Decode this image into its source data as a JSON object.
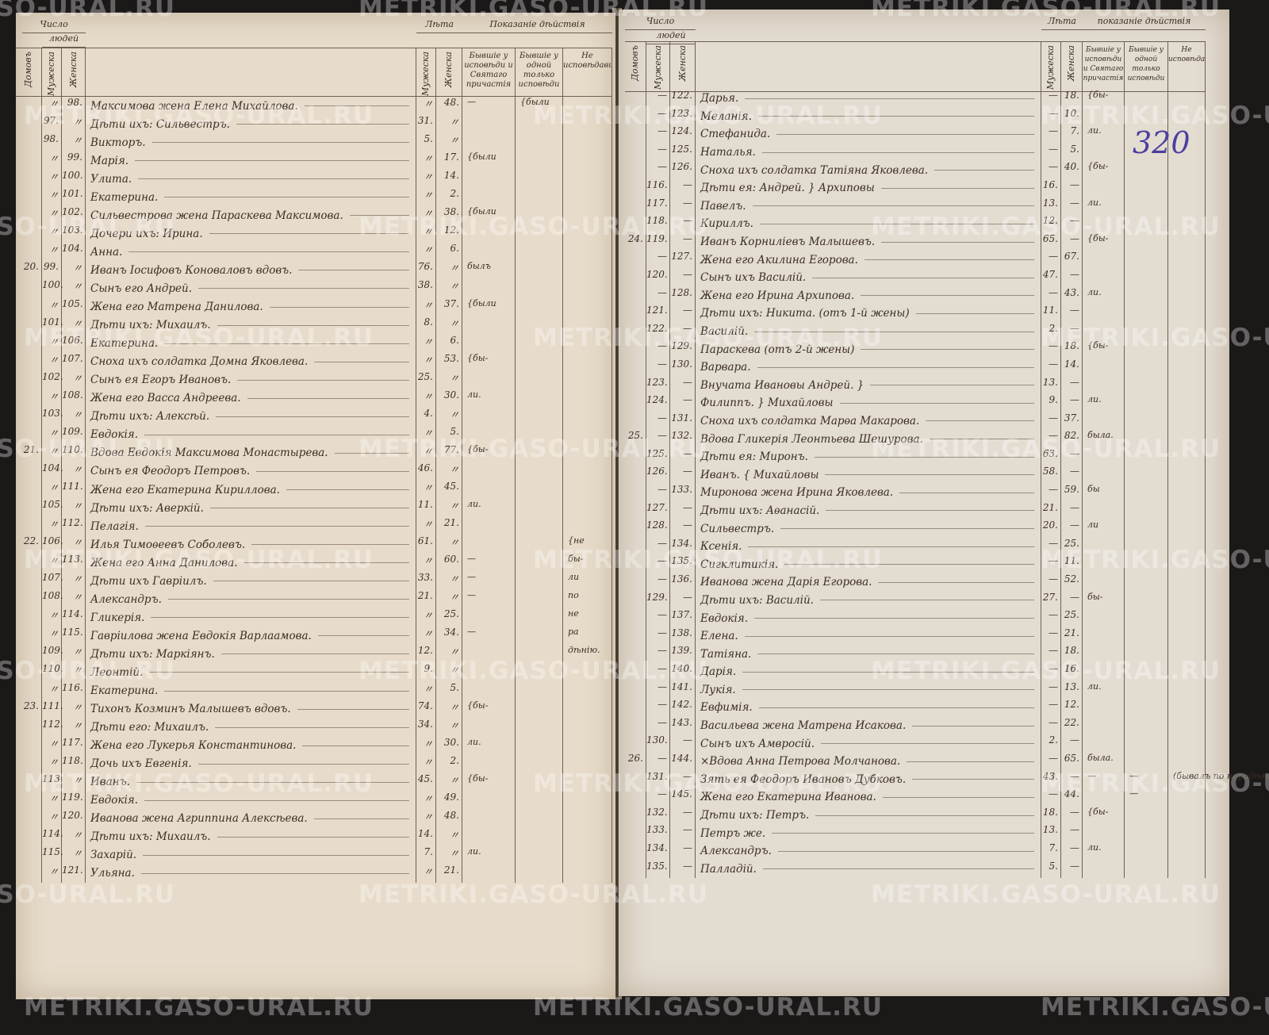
{
  "watermark": "METRIKI.GASO-URAL.RU",
  "page_number": "320",
  "colors": {
    "paper": "#e5dccd",
    "ink": "#3b2d25",
    "page_number_ink": "#4a3fa0",
    "background": "#1b1918"
  },
  "left_page": {
    "header": {
      "count_group": "Число",
      "people_group": "людей",
      "houses": "Домовъ",
      "male": "Мужеска",
      "female": "Женска",
      "age_group": "Лѣта",
      "age_male": "Мужеска",
      "age_female": "Женска",
      "status_group": "Показаніе дѣйствія",
      "confession_communion": "Бывшіе у исповѣди и Святаго причастія",
      "confession_only": "Бывшіе у одной только исповѣди",
      "not_confessed": "Не исповѣдавшіеся"
    },
    "rows": [
      {
        "house": "",
        "male_no": "〃",
        "female_no": "98.",
        "name": "Максимова жена Елена Михайлова.",
        "age_m": "〃",
        "age_f": "48.",
        "c1": "—",
        "c2": "{были"
      },
      {
        "house": "",
        "male_no": "97.",
        "female_no": "〃",
        "name": "Дѣти ихъ: Сильвестръ.",
        "age_m": "31.",
        "age_f": "〃",
        "c1": "",
        "c2": ""
      },
      {
        "house": "",
        "male_no": "98.",
        "female_no": "〃",
        "name": "Викторъ.",
        "age_m": "5.",
        "age_f": "〃",
        "c1": "",
        "c2": ""
      },
      {
        "house": "",
        "male_no": "〃",
        "female_no": "99.",
        "name": "Марія.",
        "age_m": "〃",
        "age_f": "17.",
        "c1": "{были",
        "c2": ""
      },
      {
        "house": "",
        "male_no": "〃",
        "female_no": "100.",
        "name": "Улита.",
        "age_m": "〃",
        "age_f": "14.",
        "c1": "",
        "c2": ""
      },
      {
        "house": "",
        "male_no": "〃",
        "female_no": "101.",
        "name": "Екатерина.",
        "age_m": "〃",
        "age_f": "2.",
        "c1": "",
        "c2": ""
      },
      {
        "house": "",
        "male_no": "〃",
        "female_no": "102.",
        "name": "Сильвестрова жена Параскева Максимова.",
        "age_m": "〃",
        "age_f": "38.",
        "c1": "{были",
        "c2": ""
      },
      {
        "house": "",
        "male_no": "〃",
        "female_no": "103.",
        "name": "Дочери ихъ: Ирина.",
        "age_m": "〃",
        "age_f": "12.",
        "c1": "",
        "c2": ""
      },
      {
        "house": "",
        "male_no": "〃",
        "female_no": "104.",
        "name": "Анна.",
        "age_m": "〃",
        "age_f": "6.",
        "c1": "",
        "c2": ""
      },
      {
        "house": "20.",
        "male_no": "99.",
        "female_no": "〃",
        "name": "Иванъ Іосифовъ Коноваловъ вдовъ.",
        "age_m": "76.",
        "age_f": "〃",
        "c1": "былъ",
        "c2": ""
      },
      {
        "house": "",
        "male_no": "100.",
        "female_no": "〃",
        "name": "Сынъ его Андрей.",
        "age_m": "38.",
        "age_f": "〃",
        "c1": "",
        "c2": ""
      },
      {
        "house": "",
        "male_no": "〃",
        "female_no": "105.",
        "name": "Жена его Матрена Данилова.",
        "age_m": "〃",
        "age_f": "37.",
        "c1": "{были",
        "c2": ""
      },
      {
        "house": "",
        "male_no": "101.",
        "female_no": "〃",
        "name": "Дѣти ихъ: Михаилъ.",
        "age_m": "8.",
        "age_f": "〃",
        "c1": "",
        "c2": ""
      },
      {
        "house": "",
        "male_no": "〃",
        "female_no": "106.",
        "name": "Екатерина.",
        "age_m": "〃",
        "age_f": "6.",
        "c1": "",
        "c2": ""
      },
      {
        "house": "",
        "male_no": "〃",
        "female_no": "107.",
        "name": "Сноха ихъ солдатка Домна Яковлева.",
        "age_m": "〃",
        "age_f": "53.",
        "c1": "{бы-",
        "c2": ""
      },
      {
        "house": "",
        "male_no": "102.",
        "female_no": "〃",
        "name": "Сынъ ея Егоръ Ивановъ.",
        "age_m": "25.",
        "age_f": "〃",
        "c1": "",
        "c2": ""
      },
      {
        "house": "",
        "male_no": "〃",
        "female_no": "108.",
        "name": "Жена его Васса Андреева.",
        "age_m": "〃",
        "age_f": "30.",
        "c1": "ли.",
        "c2": ""
      },
      {
        "house": "",
        "male_no": "103.",
        "female_no": "〃",
        "name": "Дѣти ихъ: Алексѣй.",
        "age_m": "4.",
        "age_f": "〃",
        "c1": "",
        "c2": ""
      },
      {
        "house": "",
        "male_no": "〃",
        "female_no": "109.",
        "name": "Евдокія.",
        "age_m": "〃",
        "age_f": "5.",
        "c1": "",
        "c2": ""
      },
      {
        "house": "21.",
        "male_no": "〃",
        "female_no": "110.",
        "name": "Вдова Евдокія Максимова Монастырева.",
        "age_m": "〃",
        "age_f": "77.",
        "c1": "{бы-",
        "c2": ""
      },
      {
        "house": "",
        "male_no": "104.",
        "female_no": "〃",
        "name": "Сынъ ея Феодоръ Петровъ.",
        "age_m": "46.",
        "age_f": "〃",
        "c1": "",
        "c2": ""
      },
      {
        "house": "",
        "male_no": "〃",
        "female_no": "111.",
        "name": "Жена его Екатерина Кириллова.",
        "age_m": "〃",
        "age_f": "45.",
        "c1": "",
        "c2": ""
      },
      {
        "house": "",
        "male_no": "105.",
        "female_no": "〃",
        "name": "Дѣти ихъ: Аверкій.",
        "age_m": "11.",
        "age_f": "〃",
        "c1": "ли.",
        "c2": ""
      },
      {
        "house": "",
        "male_no": "〃",
        "female_no": "112.",
        "name": "Пелагія.",
        "age_m": "〃",
        "age_f": "21.",
        "c1": "",
        "c2": ""
      },
      {
        "house": "22.",
        "male_no": "106.",
        "female_no": "〃",
        "name": "Илья Тимоѳеевъ Соболевъ.",
        "age_m": "61.",
        "age_f": "〃",
        "c1": "",
        "c2": "",
        "c3": "{не"
      },
      {
        "house": "",
        "male_no": "〃",
        "female_no": "113.",
        "name": "Жена его Анна Данилова.",
        "age_m": "〃",
        "age_f": "60.",
        "c1": "—",
        "c2": "",
        "c3": "бы-"
      },
      {
        "house": "",
        "male_no": "107.",
        "female_no": "〃",
        "name": "Дѣти ихъ Гавріилъ.",
        "age_m": "33.",
        "age_f": "〃",
        "c1": "—",
        "c2": "",
        "c3": "ли"
      },
      {
        "house": "",
        "male_no": "108.",
        "female_no": "〃",
        "name": "Александръ.",
        "age_m": "21.",
        "age_f": "〃",
        "c1": "—",
        "c2": "",
        "c3": "по"
      },
      {
        "house": "",
        "male_no": "〃",
        "female_no": "114.",
        "name": "Гликерія.",
        "age_m": "〃",
        "age_f": "25.",
        "c1": "",
        "c2": "",
        "c3": "не"
      },
      {
        "house": "",
        "male_no": "〃",
        "female_no": "115.",
        "name": "Гавріилова жена Евдокія Варлаамова.",
        "age_m": "〃",
        "age_f": "34.",
        "c1": "—",
        "c2": "",
        "c3": "ра"
      },
      {
        "house": "",
        "male_no": "109.",
        "female_no": "〃",
        "name": "Дѣти ихъ: Маркіянъ.",
        "age_m": "12.",
        "age_f": "〃",
        "c1": "",
        "c2": "",
        "c3": "дѣнію."
      },
      {
        "house": "",
        "male_no": "110.",
        "female_no": "〃",
        "name": "Леонтій.",
        "age_m": "9.",
        "age_f": "〃",
        "c1": "",
        "c2": ""
      },
      {
        "house": "",
        "male_no": "〃",
        "female_no": "116.",
        "name": "Екатерина.",
        "age_m": "〃",
        "age_f": "5.",
        "c1": "",
        "c2": ""
      },
      {
        "house": "23.",
        "male_no": "111.",
        "female_no": "〃",
        "name": "Тихонъ Козминъ Малышевъ вдовъ.",
        "age_m": "74.",
        "age_f": "〃",
        "c1": "{бы-",
        "c2": ""
      },
      {
        "house": "",
        "male_no": "112.",
        "female_no": "〃",
        "name": "Дѣти его: Михаилъ.",
        "age_m": "34.",
        "age_f": "〃",
        "c1": "",
        "c2": ""
      },
      {
        "house": "",
        "male_no": "〃",
        "female_no": "117.",
        "name": "Жена его Лукерья Константинова.",
        "age_m": "〃",
        "age_f": "30.",
        "c1": "ли.",
        "c2": ""
      },
      {
        "house": "",
        "male_no": "〃",
        "female_no": "118.",
        "name": "Дочь ихъ Евгенія.",
        "age_m": "〃",
        "age_f": "2.",
        "c1": "",
        "c2": ""
      },
      {
        "house": "",
        "male_no": "113.",
        "female_no": "〃",
        "name": "Иванъ.",
        "age_m": "45.",
        "age_f": "〃",
        "c1": "{бы-",
        "c2": ""
      },
      {
        "house": "",
        "male_no": "〃",
        "female_no": "119.",
        "name": "Евдокія.",
        "age_m": "〃",
        "age_f": "49.",
        "c1": "",
        "c2": ""
      },
      {
        "house": "",
        "male_no": "〃",
        "female_no": "120.",
        "name": "Иванова жена Агриппина Алексѣева.",
        "age_m": "〃",
        "age_f": "48.",
        "c1": "",
        "c2": ""
      },
      {
        "house": "",
        "male_no": "114.",
        "female_no": "〃",
        "name": "Дѣти ихъ: Михаилъ.",
        "age_m": "14.",
        "age_f": "〃",
        "c1": "",
        "c2": ""
      },
      {
        "house": "",
        "male_no": "115.",
        "female_no": "〃",
        "name": "Захарій.",
        "age_m": "7.",
        "age_f": "〃",
        "c1": "ли.",
        "c2": ""
      },
      {
        "house": "",
        "male_no": "〃",
        "female_no": "121.",
        "name": "Ульяна.",
        "age_m": "〃",
        "age_f": "21.",
        "c1": "",
        "c2": ""
      }
    ]
  },
  "right_page": {
    "header": {
      "count_group": "Число",
      "people_group": "людей",
      "houses": "Домовъ",
      "male": "Мужеска",
      "female": "Женска",
      "age_group": "Лѣта",
      "age_male": "Мужеска",
      "age_female": "Женска",
      "status_group": "показаніе дѣйствія",
      "confession_communion": "Бывшіе у исповѣди и Святаго причастія",
      "confession_only": "Бывшіе у одной только исповѣди",
      "not_confessed": "Не исповѣдавшіеся"
    },
    "rows": [
      {
        "house": "",
        "male_no": "—",
        "female_no": "122.",
        "name": "Дарья.",
        "age_m": "—",
        "age_f": "18.",
        "c1": "{бы-"
      },
      {
        "house": "",
        "male_no": "—",
        "female_no": "123.",
        "name": "Меланія.",
        "age_m": "—",
        "age_f": "10.",
        "c1": ""
      },
      {
        "house": "",
        "male_no": "—",
        "female_no": "124.",
        "name": "Стефанида.",
        "age_m": "—",
        "age_f": "7.",
        "c1": "ли."
      },
      {
        "house": "",
        "male_no": "—",
        "female_no": "125.",
        "name": "Наталья.",
        "age_m": "—",
        "age_f": "5.",
        "c1": ""
      },
      {
        "house": "",
        "male_no": "—",
        "female_no": "126.",
        "name": "Сноха ихъ солдатка Татіяна Яковлева.",
        "age_m": "—",
        "age_f": "40.",
        "c1": "{бы-"
      },
      {
        "house": "",
        "male_no": "116.",
        "female_no": "—",
        "name": "Дѣти ея: Андрей. } Архиповы",
        "age_m": "16.",
        "age_f": "—",
        "c1": ""
      },
      {
        "house": "",
        "male_no": "117.",
        "female_no": "—",
        "name": "Павелъ.",
        "age_m": "13.",
        "age_f": "—",
        "c1": "ли."
      },
      {
        "house": "",
        "male_no": "118.",
        "female_no": "—",
        "name": "Кириллъ.",
        "age_m": "12.",
        "age_f": "—",
        "c1": ""
      },
      {
        "house": "24.",
        "male_no": "119.",
        "female_no": "—",
        "name": "Иванъ Корниліевъ Малышевъ.",
        "age_m": "65.",
        "age_f": "—",
        "c1": "{бы-"
      },
      {
        "house": "",
        "male_no": "—",
        "female_no": "127.",
        "name": "Жена его Акилина Егорова.",
        "age_m": "—",
        "age_f": "67.",
        "c1": ""
      },
      {
        "house": "",
        "male_no": "120.",
        "female_no": "—",
        "name": "Сынъ ихъ Василій.",
        "age_m": "47.",
        "age_f": "—",
        "c1": ""
      },
      {
        "house": "",
        "male_no": "—",
        "female_no": "128.",
        "name": "Жена его Ирина Архипова.",
        "age_m": "—",
        "age_f": "43.",
        "c1": "ли."
      },
      {
        "house": "",
        "male_no": "121.",
        "female_no": "—",
        "name": "Дѣти ихъ: Никита. (отъ 1-й жены)",
        "age_m": "11.",
        "age_f": "—",
        "c1": ""
      },
      {
        "house": "",
        "male_no": "122.",
        "female_no": "—",
        "name": "Василій.",
        "age_m": "2.",
        "age_f": "—",
        "c1": ""
      },
      {
        "house": "",
        "male_no": "—",
        "female_no": "129.",
        "name": "Параскева (отъ 2-й жены)",
        "age_m": "—",
        "age_f": "18.",
        "c1": "{бы-"
      },
      {
        "house": "",
        "male_no": "—",
        "female_no": "130.",
        "name": "Варвара.",
        "age_m": "—",
        "age_f": "14.",
        "c1": ""
      },
      {
        "house": "",
        "male_no": "123.",
        "female_no": "—",
        "name": "Внучата Ивановы Андрей. }",
        "age_m": "13.",
        "age_f": "—",
        "c1": ""
      },
      {
        "house": "",
        "male_no": "124.",
        "female_no": "—",
        "name": "Филиппъ. } Михайловы",
        "age_m": "9.",
        "age_f": "—",
        "c1": "ли."
      },
      {
        "house": "",
        "male_no": "—",
        "female_no": "131.",
        "name": "Сноха ихъ солдатка Марѳа Макарова.",
        "age_m": "—",
        "age_f": "37.",
        "c1": ""
      },
      {
        "house": "25.",
        "male_no": "—",
        "female_no": "132.",
        "name": "Вдова Гликерія Леонтьева Шешурова.",
        "age_m": "—",
        "age_f": "82.",
        "c1": "была."
      },
      {
        "house": "",
        "male_no": "125.",
        "female_no": "—",
        "name": "Дѣти ея: Миронъ.",
        "age_m": "63.",
        "age_f": "—",
        "c1": ""
      },
      {
        "house": "",
        "male_no": "126.",
        "female_no": "—",
        "name": "Иванъ. { Михайловы",
        "age_m": "58.",
        "age_f": "—",
        "c1": ""
      },
      {
        "house": "",
        "male_no": "—",
        "female_no": "133.",
        "name": "Миронова жена Ирина Яковлева.",
        "age_m": "—",
        "age_f": "59.",
        "c1": "бы"
      },
      {
        "house": "",
        "male_no": "127.",
        "female_no": "—",
        "name": "Дѣти ихъ: Аѳанасій.",
        "age_m": "21.",
        "age_f": "—",
        "c1": ""
      },
      {
        "house": "",
        "male_no": "128.",
        "female_no": "—",
        "name": "Сильвестръ.",
        "age_m": "20.",
        "age_f": "—",
        "c1": "ли"
      },
      {
        "house": "",
        "male_no": "—",
        "female_no": "134.",
        "name": "Ксенія.",
        "age_m": "—",
        "age_f": "25.",
        "c1": ""
      },
      {
        "house": "",
        "male_no": "—",
        "female_no": "135.",
        "name": "Сигклитикія.",
        "age_m": "—",
        "age_f": "11.",
        "c1": ""
      },
      {
        "house": "",
        "male_no": "—",
        "female_no": "136.",
        "name": "Иванова жена Дарія Егорова.",
        "age_m": "—",
        "age_f": "52.",
        "c1": ""
      },
      {
        "house": "",
        "male_no": "129.",
        "female_no": "—",
        "name": "Дѣти ихъ: Василій.",
        "age_m": "27.",
        "age_f": "—",
        "c1": "бы-"
      },
      {
        "house": "",
        "male_no": "—",
        "female_no": "137.",
        "name": "Евдокія.",
        "age_m": "—",
        "age_f": "25.",
        "c1": ""
      },
      {
        "house": "",
        "male_no": "—",
        "female_no": "138.",
        "name": "Елена.",
        "age_m": "—",
        "age_f": "21.",
        "c1": ""
      },
      {
        "house": "",
        "male_no": "—",
        "female_no": "139.",
        "name": "Татіяна.",
        "age_m": "—",
        "age_f": "18.",
        "c1": ""
      },
      {
        "house": "",
        "male_no": "—",
        "female_no": "140.",
        "name": "Дарія.",
        "age_m": "—",
        "age_f": "16.",
        "c1": ""
      },
      {
        "house": "",
        "male_no": "—",
        "female_no": "141.",
        "name": "Лукія.",
        "age_m": "—",
        "age_f": "13.",
        "c1": "ли."
      },
      {
        "house": "",
        "male_no": "—",
        "female_no": "142.",
        "name": "Евфимія.",
        "age_m": "—",
        "age_f": "12.",
        "c1": ""
      },
      {
        "house": "",
        "male_no": "—",
        "female_no": "143.",
        "name": "Васильева жена Матрена Исакова.",
        "age_m": "—",
        "age_f": "22.",
        "c1": ""
      },
      {
        "house": "",
        "male_no": "130.",
        "female_no": "—",
        "name": "Сынъ ихъ Амвросій.",
        "age_m": "2.",
        "age_f": "—",
        "c1": ""
      },
      {
        "house": "26.",
        "male_no": "—",
        "female_no": "144.",
        "name": "×Вдова Анна Петрова Молчанова.",
        "age_m": "—",
        "age_f": "65.",
        "c1": "была."
      },
      {
        "house": "",
        "male_no": "131.",
        "female_no": "—",
        "name": "Зять ея Феодоръ Ивановъ Дубковъ.",
        "age_m": "43.",
        "age_f": "—",
        "c1": "—",
        "c2": "—",
        "c3": "(бывалъ по нерадѣнію)"
      },
      {
        "house": "",
        "male_no": "—",
        "female_no": "145.",
        "name": "Жена его Екатерина Иванова.",
        "age_m": "—",
        "age_f": "44.",
        "c1": "",
        "c2": "—"
      },
      {
        "house": "",
        "male_no": "132.",
        "female_no": "—",
        "name": "Дѣти ихъ: Петръ.",
        "age_m": "18.",
        "age_f": "—",
        "c1": "{бы-"
      },
      {
        "house": "",
        "male_no": "133.",
        "female_no": "—",
        "name": "Петръ же.",
        "age_m": "13.",
        "age_f": "—",
        "c1": ""
      },
      {
        "house": "",
        "male_no": "134.",
        "female_no": "—",
        "name": "Александръ.",
        "age_m": "7.",
        "age_f": "—",
        "c1": "ли."
      },
      {
        "house": "",
        "male_no": "135.",
        "female_no": "—",
        "name": "Палладій.",
        "age_m": "5.",
        "age_f": "—",
        "c1": ""
      }
    ]
  }
}
